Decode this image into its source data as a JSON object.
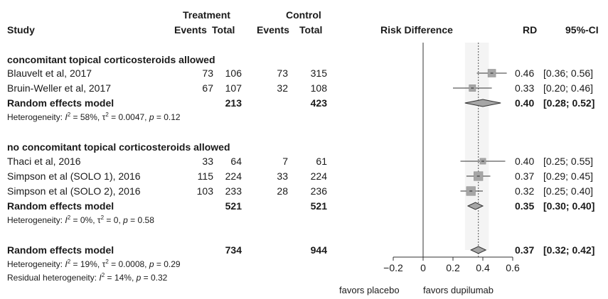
{
  "header": {
    "group_treatment": "Treatment",
    "group_control": "Control",
    "study": "Study",
    "events": "Events",
    "total": "Total",
    "plot_label": "Risk Difference",
    "rd": "RD",
    "ci": "95%-CI"
  },
  "subgroups": [
    {
      "title": "concomitant topical corticosteroids allowed",
      "studies": [
        {
          "name": "Blauvelt et al, 2017",
          "t_events": "73",
          "t_total": "106",
          "c_events": "73",
          "c_total": "315",
          "rd": "0.46",
          "ci": "[0.36; 0.56]"
        },
        {
          "name": "Bruin-Weller et al, 2017",
          "t_events": "67",
          "t_total": "107",
          "c_events": "32",
          "c_total": "108",
          "rd": "0.33",
          "ci": "[0.20; 0.46]"
        }
      ],
      "model": {
        "label": "Random effects model",
        "t_total": "213",
        "c_total": "423",
        "rd": "0.40",
        "ci": "[0.28; 0.52]"
      },
      "heterogeneity": {
        "prefix": "Heterogeneity: ",
        "i2": "58%",
        "tau2": "0.0047",
        "p": "0.12"
      }
    },
    {
      "title": "no concomitant topical corticosteroids allowed",
      "studies": [
        {
          "name": "Thaci et al, 2016",
          "t_events": "33",
          "t_total": "64",
          "c_events": "7",
          "c_total": "61",
          "rd": "0.40",
          "ci": "[0.25; 0.55]"
        },
        {
          "name": "Simpson et al (SOLO 1), 2016",
          "t_events": "115",
          "t_total": "224",
          "c_events": "33",
          "c_total": "224",
          "rd": "0.37",
          "ci": "[0.29; 0.45]"
        },
        {
          "name": "Simpson et al (SOLO 2), 2016",
          "t_events": "103",
          "t_total": "233",
          "c_events": "28",
          "c_total": "236",
          "rd": "0.32",
          "ci": "[0.25; 0.40]"
        }
      ],
      "model": {
        "label": "Random effects model",
        "t_total": "521",
        "c_total": "521",
        "rd": "0.35",
        "ci": "[0.30; 0.40]"
      },
      "heterogeneity": {
        "prefix": "Heterogeneity: ",
        "i2": "0%",
        "tau2": "0",
        "p": "0.58"
      }
    }
  ],
  "overall": {
    "model": {
      "label": "Random effects model",
      "t_total": "734",
      "c_total": "944",
      "rd": "0.37",
      "ci": "[0.32; 0.42]"
    },
    "heterogeneity": {
      "prefix": "Heterogeneity: ",
      "i2": "19%",
      "tau2": "0.0008",
      "p": "0.29"
    },
    "residual": {
      "prefix": "Residual heterogeneity: ",
      "i2": "14%",
      "p": "0.32"
    }
  },
  "chart_data": {
    "type": "forest",
    "xlabel_left": "favors placebo",
    "xlabel_right": "favors dupilumab",
    "xlim": [
      -0.2,
      0.6
    ],
    "xticks": [
      "−0.2",
      "0",
      "0.2",
      "0.4",
      "0.6"
    ],
    "xtick_values": [
      -0.2,
      0,
      0.2,
      0.4,
      0.6
    ],
    "null_line": 0,
    "pooled_line": 0.37,
    "square_color": "#a6a6a6",
    "diamond_color": "#a6a6a6",
    "studies": [
      {
        "name": "Blauvelt et al, 2017",
        "rd": 0.46,
        "lo": 0.36,
        "hi": 0.56,
        "weight": 1.0
      },
      {
        "name": "Bruin-Weller et al, 2017",
        "rd": 0.33,
        "lo": 0.2,
        "hi": 0.46,
        "weight": 0.85
      },
      {
        "name": "Thaci et al, 2016",
        "rd": 0.4,
        "lo": 0.25,
        "hi": 0.55,
        "weight": 0.75
      },
      {
        "name": "Simpson et al (SOLO 1), 2016",
        "rd": 0.37,
        "lo": 0.29,
        "hi": 0.45,
        "weight": 1.15
      },
      {
        "name": "Simpson et al (SOLO 2), 2016",
        "rd": 0.32,
        "lo": 0.25,
        "hi": 0.4,
        "weight": 1.15
      }
    ],
    "models": [
      {
        "name": "Random effects model (subgroup 1)",
        "rd": 0.4,
        "lo": 0.28,
        "hi": 0.52
      },
      {
        "name": "Random effects model (subgroup 2)",
        "rd": 0.35,
        "lo": 0.3,
        "hi": 0.4
      },
      {
        "name": "Random effects model (overall)",
        "rd": 0.37,
        "lo": 0.32,
        "hi": 0.42
      }
    ]
  }
}
